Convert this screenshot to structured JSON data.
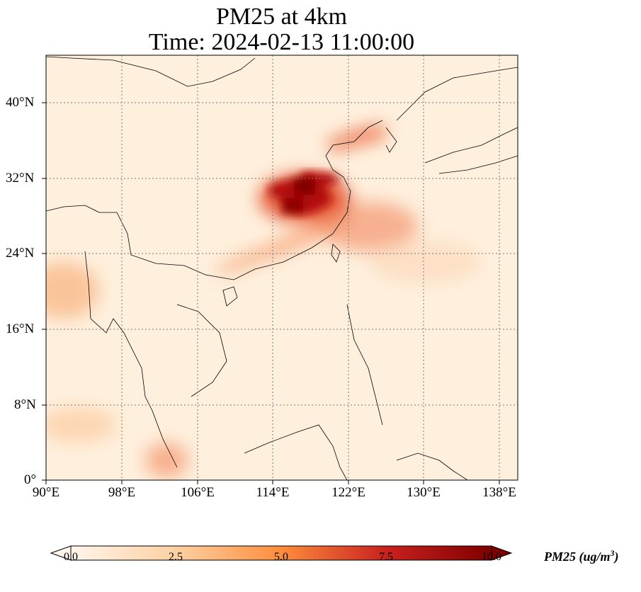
{
  "title_line1": "PM25 at 4km",
  "title_line2": "Time: 2024-02-13 11:00:00",
  "x_ticks": [
    "90°E",
    "98°E",
    "106°E",
    "114°E",
    "122°E",
    "130°E",
    "138°E"
  ],
  "y_ticks": [
    "40°N",
    "32°N",
    "24°N",
    "16°N",
    "8°N",
    "0°"
  ],
  "map_extent": {
    "lon": [
      90,
      140
    ],
    "lat": [
      0,
      45
    ]
  },
  "colorbar": {
    "ticks": [
      "0.0",
      "2.5",
      "5.0",
      "7.5",
      "10.0"
    ],
    "label_main": "PM25 (ug/m",
    "label_sup": "3",
    "label_end": ")",
    "colormap": [
      "#fff5eb",
      "#fdd0a2",
      "#fd8d3c",
      "#d94801",
      "#7f2704"
    ]
  }
}
